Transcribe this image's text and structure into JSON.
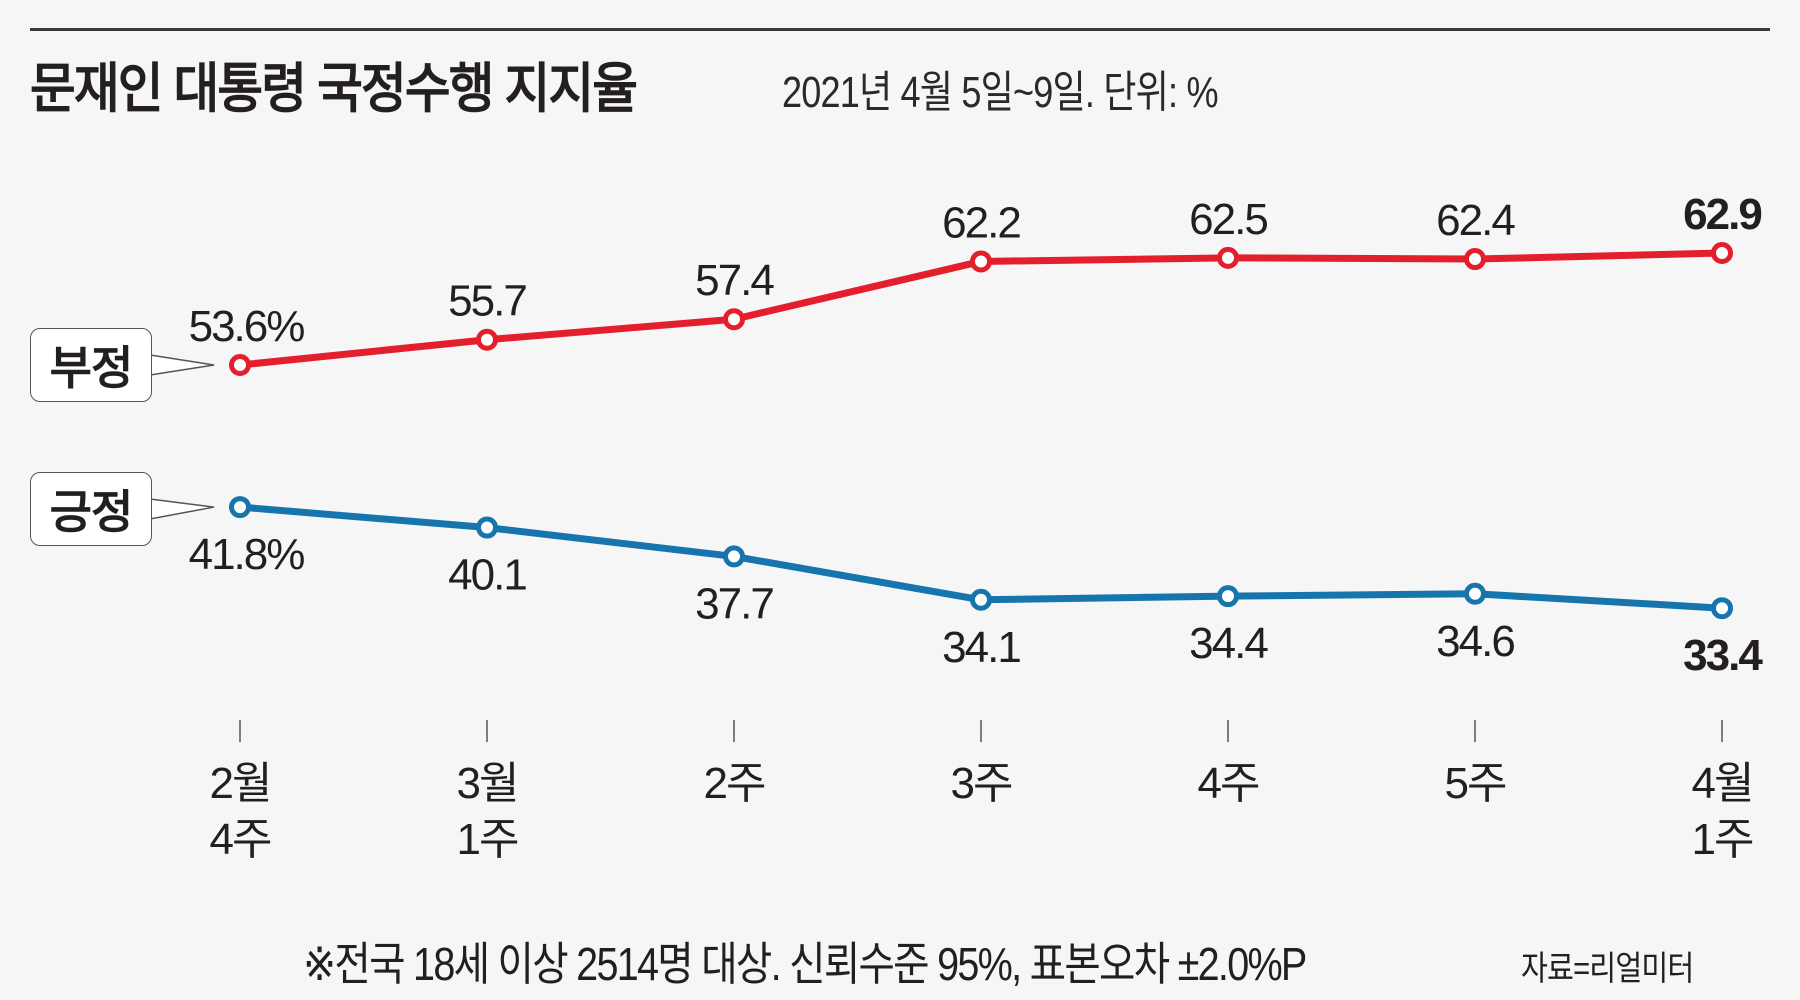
{
  "header": {
    "title": "문재인 대통령 국정수행 지지율",
    "subtitle": "2021년 4월 5일~9일. 단위: %"
  },
  "legend": {
    "negative": "부정",
    "positive": "긍정"
  },
  "footer": {
    "note": "※전국 18세 이상 2514명 대상. 신뢰수준 95%, 표본오차 ±2.0%P",
    "source": "자료=리얼미터"
  },
  "chart_data": {
    "type": "line",
    "title": "문재인 대통령 국정수행 지지율",
    "subtitle": "2021년 4월 5일~9일. 단위: %",
    "xlabel": "",
    "ylabel": "",
    "grid": false,
    "legend_placement": "left",
    "categories": [
      [
        "2월",
        "4주"
      ],
      [
        "3월",
        "1주"
      ],
      [
        "2주"
      ],
      [
        "3주"
      ],
      [
        "4주"
      ],
      [
        "5주"
      ],
      [
        "4월",
        "1주"
      ]
    ],
    "ylim": [
      30,
      66
    ],
    "series": [
      {
        "name": "부정",
        "color": "#e31e2d",
        "values": [
          53.6,
          55.7,
          57.4,
          62.2,
          62.5,
          62.4,
          62.9
        ],
        "labels": [
          "53.6%",
          "55.7",
          "57.4",
          "62.2",
          "62.5",
          "62.4",
          "62.9"
        ],
        "label_position": "above"
      },
      {
        "name": "긍정",
        "color": "#1775ad",
        "values": [
          41.8,
          40.1,
          37.7,
          34.1,
          34.4,
          34.6,
          33.4
        ],
        "labels": [
          "41.8%",
          "40.1",
          "37.7",
          "34.1",
          "34.4",
          "34.6",
          "33.4"
        ],
        "label_position": "below"
      }
    ],
    "highlight_last": true
  }
}
